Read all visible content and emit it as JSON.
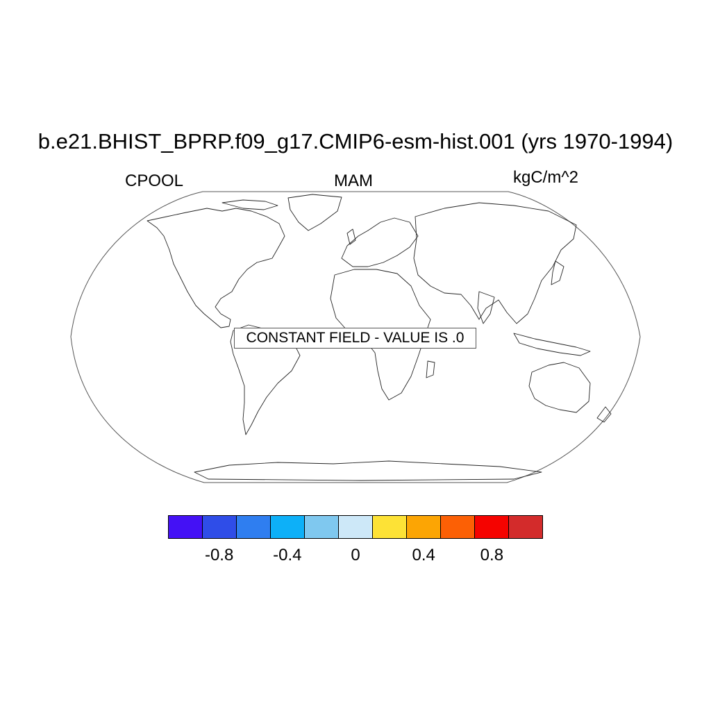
{
  "title": "b.e21.BHIST_BPRP.f09_g17.CMIP6-esm-hist.001 (yrs 1970-1994)",
  "left_string": "CPOOL",
  "center_string": "MAM",
  "right_string": "kgC/m^2",
  "notice": "CONSTANT FIELD - VALUE IS .0",
  "projection": "Robinson",
  "colorbar": {
    "colors": [
      "#4411f5",
      "#2f4de8",
      "#2f7ef0",
      "#0db0f8",
      "#7fc8ef",
      "#cde8f8",
      "#fde236",
      "#fca504",
      "#fc6005",
      "#f50300",
      "#d32b2b"
    ],
    "tick_labels": [
      "-0.8",
      "-0.4",
      "0",
      "0.4",
      "0.8"
    ],
    "tick_values": [
      -0.8,
      -0.4,
      0,
      0.4,
      0.8
    ],
    "range": [
      -1.1,
      1.1
    ]
  }
}
